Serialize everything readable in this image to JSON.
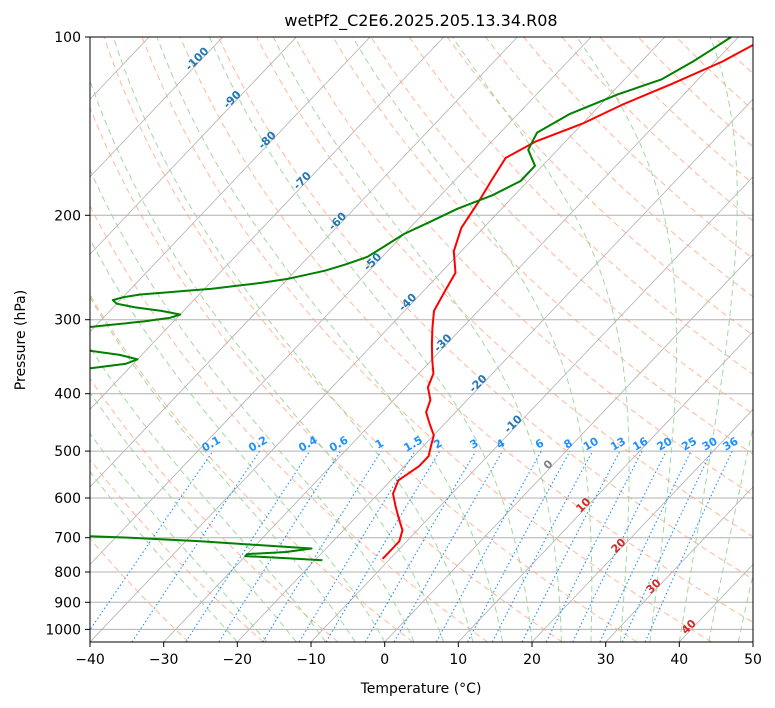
{
  "chart_data": {
    "type": "line",
    "title": "wetPf2_C2E6.2025.205.13.34.R08",
    "xlabel": "Temperature (°C)",
    "ylabel": "Pressure (hPa)",
    "xlim": [
      -40,
      50
    ],
    "ylim": [
      1050,
      100
    ],
    "y_scale": "log",
    "x_ticks": [
      -40,
      -30,
      -20,
      -10,
      0,
      10,
      20,
      30,
      40,
      50
    ],
    "y_ticks": [
      100,
      200,
      300,
      400,
      500,
      600,
      700,
      800,
      900,
      1000
    ],
    "grid": true,
    "series": [
      {
        "color": "#ff0000",
        "p": [
          100,
          110,
          120,
          130,
          140,
          150,
          160,
          175,
          190,
          210,
          230,
          250,
          270,
          290,
          310,
          330,
          350,
          370,
          390,
          410,
          430,
          450,
          470,
          490,
          510,
          530,
          560,
          590,
          620,
          650,
          680,
          710,
          730,
          750,
          760
        ],
        "t": [
          -26,
          -29,
          -33,
          -37,
          -40,
          -44,
          -46,
          -45,
          -44,
          -43,
          -41,
          -38,
          -37,
          -36,
          -34,
          -32,
          -30,
          -28,
          -27,
          -25,
          -24,
          -22,
          -20,
          -19,
          -18,
          -18,
          -19,
          -18,
          -16,
          -14,
          -12,
          -11,
          -11,
          -11,
          -11
        ]
      },
      {
        "color": "#008000",
        "p": [
          100,
          105,
          110,
          118,
          125,
          135,
          145,
          155,
          165,
          175,
          185,
          195,
          205,
          215,
          225,
          235,
          242,
          248,
          252,
          256,
          260,
          263,
          266,
          268,
          270,
          272,
          275,
          278,
          282,
          286,
          290,
          294,
          298,
          302,
          306,
          310,
          315,
          320,
          326,
          332,
          338,
          344,
          350,
          356,
          362,
          368,
          374,
          380,
          390,
          400,
          410,
          420,
          425,
          430,
          436,
          442,
          448,
          455,
          460,
          470,
          480,
          490,
          500,
          510,
          520,
          530,
          540,
          548,
          556,
          564,
          572,
          580,
          590,
          600,
          610,
          620,
          630,
          640,
          650,
          660,
          668,
          676,
          684,
          692,
          700,
          710,
          720,
          730,
          740,
          746,
          752,
          758,
          764
        ],
        "t": [
          -31,
          -32,
          -33,
          -35,
          -39,
          -43,
          -45,
          -44,
          -41,
          -41,
          -43,
          -46,
          -48,
          -50,
          -51,
          -52,
          -54,
          -56,
          -58,
          -60,
          -63,
          -66,
          -69,
          -72,
          -75,
          -78,
          -80,
          -81,
          -80,
          -77,
          -73,
          -70,
          -71,
          -74,
          -78,
          -82,
          -85,
          -87,
          -86,
          -83,
          -78,
          -73,
          -70,
          -71,
          -75,
          -80,
          -85,
          -89,
          -90,
          -90,
          -89,
          -88,
          -87,
          -83,
          -78,
          -76,
          -78,
          -83,
          -90,
          -92,
          -93,
          -94,
          -95,
          -96,
          -97,
          -99,
          -93,
          -87,
          -81,
          -79,
          -80,
          -78,
          -74,
          -73,
          -74,
          -77,
          -80,
          -84,
          -89,
          -92,
          -88,
          -79,
          -70,
          -60,
          -48,
          -38,
          -30,
          -22,
          -25,
          -30,
          -30,
          -24,
          -19
        ]
      }
    ],
    "isotherm_labels": [
      "-100",
      "-90",
      "-80",
      "-70",
      "-60",
      "-50",
      "-40",
      "-30",
      "-20",
      "-10",
      "0",
      "10",
      "20",
      "30",
      "40"
    ],
    "mixing_ratio_labels": [
      "0.1",
      "0.2",
      "0.4",
      "0.6",
      "1",
      "1.5",
      "2",
      "3",
      "4",
      "6",
      "8",
      "10",
      "13",
      "16",
      "20",
      "25",
      "30",
      "36"
    ],
    "mixing_ratio_values": [
      0.1,
      0.2,
      0.4,
      0.6,
      1,
      1.5,
      2,
      3,
      4,
      6,
      8,
      10,
      13,
      16,
      20,
      25,
      30,
      36
    ],
    "colors": {
      "temperature": "#ff0000",
      "dewpoint": "#008000",
      "isotherm_label": "#1f77b4",
      "isotherm_label_warm": "#d62728",
      "isotherm_label_zero": "#7f7f7f",
      "mixing_ratio": "#1e90ff",
      "dry_adiabat": "#ffa07a",
      "moist_adiabat": "#98d498",
      "grid": "#b0b0b0"
    }
  }
}
